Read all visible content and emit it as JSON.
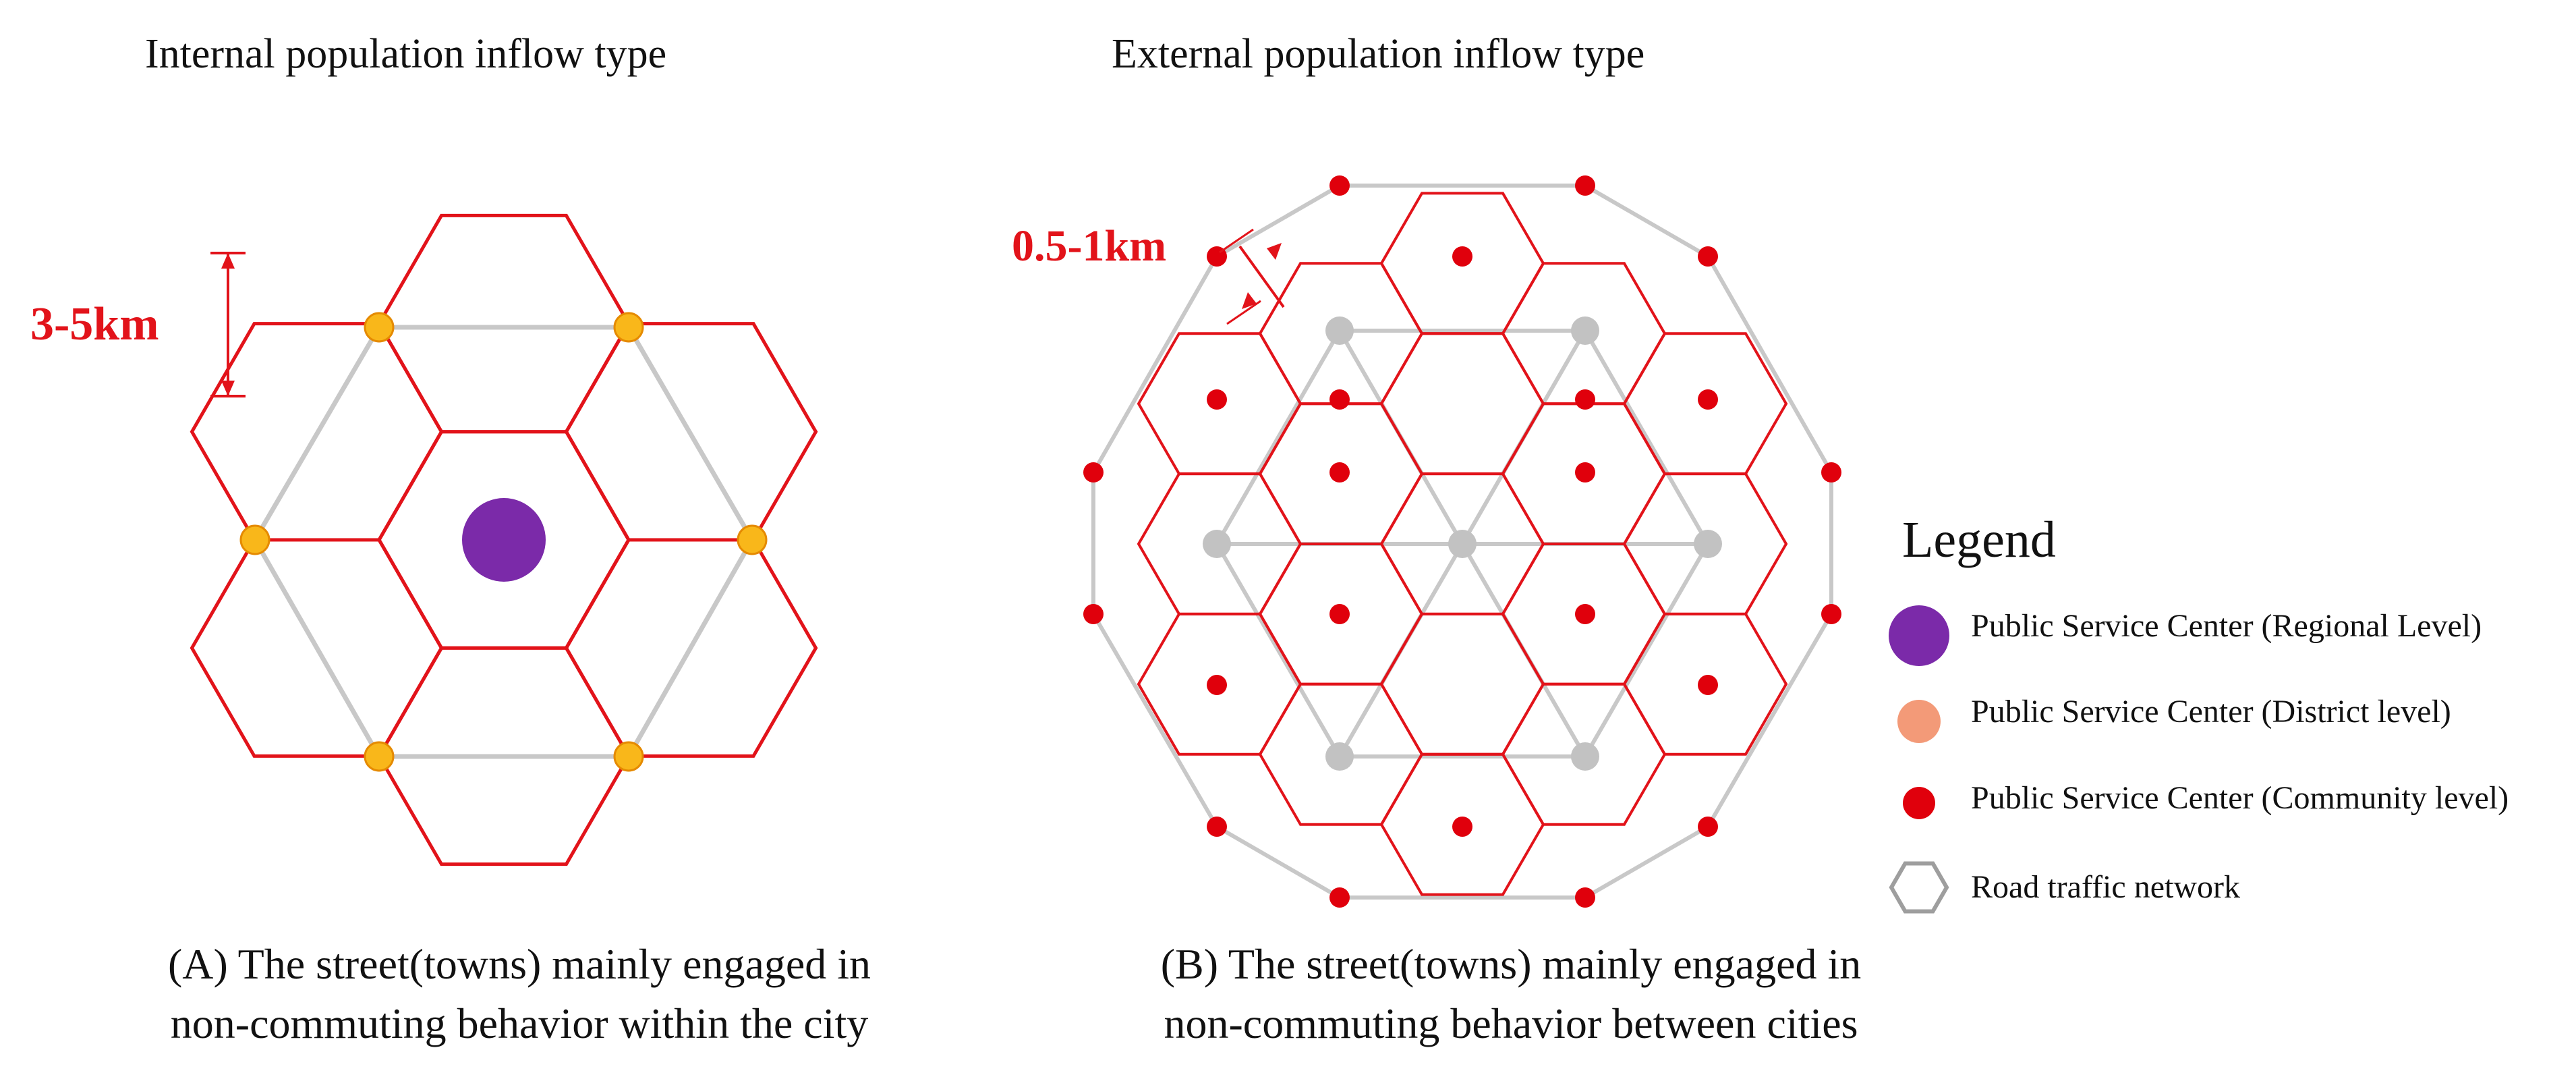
{
  "panel_a": {
    "title": "Internal population inflow type",
    "scale_label": "3-5km",
    "caption_line1": "(A) The street(towns) mainly engaged in",
    "caption_line2": "non-commuting behavior within the city"
  },
  "panel_b": {
    "title": "External population inflow type",
    "scale_label": "0.5-1km",
    "caption_line1": "(B) The street(towns) mainly engaged in",
    "caption_line2": "non-commuting behavior between cities"
  },
  "legend": {
    "title": "Legend",
    "items": [
      {
        "label": "Public Service Center (Regional Level)",
        "symbol": "regional-center-icon"
      },
      {
        "label": "Public Service Center (District level)",
        "symbol": "district-center-icon"
      },
      {
        "label": "Public Service Center (Community level)",
        "symbol": "community-center-icon"
      },
      {
        "label": "Road traffic network",
        "symbol": "road-network-icon"
      }
    ]
  },
  "colors": {
    "hex_line": "#e2131a",
    "road": "#c8c8c8",
    "regional": "#7b2aa9",
    "district_fill": "#f9b71a",
    "district_stroke": "#e58a00",
    "legend_district": "#f39a78",
    "community": "#e0000c",
    "gray_node": "#c2c2c2"
  }
}
